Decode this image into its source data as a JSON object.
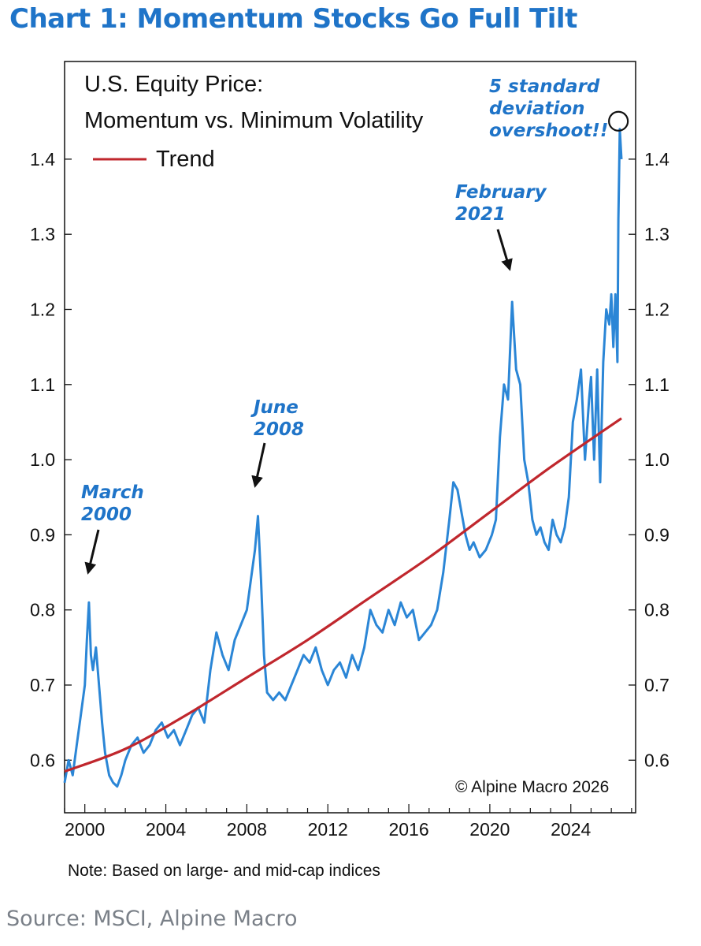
{
  "title": "Chart 1: Momentum Stocks Go Full Tilt",
  "note": "Note: Based on large- and mid-cap indices",
  "source": "Source: MSCI, Alpine Macro",
  "colors": {
    "title": "#1f74c8",
    "series": "#2b86d6",
    "trend": "#c0272d",
    "annotation": "#1f74c8"
  },
  "chart_data": {
    "type": "line",
    "legend_title": [
      "U.S. Equity Price:",
      "Momentum vs. Minimum Volatility"
    ],
    "legend_position": "top-left",
    "copyright": "© Alpine Macro 2026",
    "grid": false,
    "xlim": [
      1999.0,
      2027.2
    ],
    "ylim": [
      0.53,
      1.53
    ],
    "x_ticks": [
      2000,
      2004,
      2008,
      2012,
      2016,
      2020,
      2024
    ],
    "x_tick_labels": [
      "2000",
      "2004",
      "2008",
      "2012",
      "2016",
      "2020",
      "2024"
    ],
    "y_ticks": [
      0.6,
      0.7,
      0.8,
      0.9,
      1.0,
      1.1,
      1.2,
      1.3,
      1.4
    ],
    "y_tick_labels": [
      "0.6",
      "0.7",
      "0.8",
      "0.9",
      "1.0",
      "1.1",
      "1.2",
      "1.3",
      "1.4"
    ],
    "series": [
      {
        "kind": "price",
        "x": [
          1999.0,
          1999.2,
          1999.4,
          1999.6,
          1999.8,
          2000.0,
          2000.1,
          2000.2,
          2000.3,
          2000.4,
          2000.55,
          2000.7,
          2000.85,
          2001.0,
          2001.2,
          2001.4,
          2001.6,
          2001.8,
          2002.0,
          2002.3,
          2002.6,
          2002.9,
          2003.2,
          2003.5,
          2003.8,
          2004.1,
          2004.4,
          2004.7,
          2005.0,
          2005.3,
          2005.6,
          2005.9,
          2006.2,
          2006.5,
          2006.8,
          2007.1,
          2007.4,
          2007.7,
          2008.0,
          2008.2,
          2008.4,
          2008.55,
          2008.7,
          2008.85,
          2009.0,
          2009.3,
          2009.6,
          2009.9,
          2010.2,
          2010.5,
          2010.8,
          2011.1,
          2011.4,
          2011.7,
          2012.0,
          2012.3,
          2012.6,
          2012.9,
          2013.2,
          2013.5,
          2013.8,
          2014.1,
          2014.4,
          2014.7,
          2015.0,
          2015.3,
          2015.6,
          2015.9,
          2016.2,
          2016.5,
          2016.8,
          2017.1,
          2017.4,
          2017.7,
          2018.0,
          2018.2,
          2018.4,
          2018.6,
          2018.8,
          2019.0,
          2019.2,
          2019.5,
          2019.8,
          2020.1,
          2020.3,
          2020.5,
          2020.7,
          2020.9,
          2021.1,
          2021.3,
          2021.5,
          2021.7,
          2021.9,
          2022.1,
          2022.3,
          2022.5,
          2022.7,
          2022.9,
          2023.1,
          2023.3,
          2023.5,
          2023.7,
          2023.9,
          2024.1,
          2024.3,
          2024.5,
          2024.7,
          2024.9,
          2025.0,
          2025.15,
          2025.3,
          2025.45,
          2025.6,
          2025.75,
          2025.9,
          2026.0,
          2026.1,
          2026.2,
          2026.3,
          2026.35,
          2026.42,
          2026.5
        ],
        "y": [
          0.57,
          0.6,
          0.58,
          0.62,
          0.66,
          0.7,
          0.76,
          0.81,
          0.74,
          0.72,
          0.75,
          0.7,
          0.65,
          0.61,
          0.58,
          0.57,
          0.565,
          0.58,
          0.6,
          0.62,
          0.63,
          0.61,
          0.62,
          0.64,
          0.65,
          0.63,
          0.64,
          0.62,
          0.64,
          0.66,
          0.67,
          0.65,
          0.72,
          0.77,
          0.74,
          0.72,
          0.76,
          0.78,
          0.8,
          0.84,
          0.88,
          0.925,
          0.84,
          0.74,
          0.69,
          0.68,
          0.69,
          0.68,
          0.7,
          0.72,
          0.74,
          0.73,
          0.75,
          0.72,
          0.7,
          0.72,
          0.73,
          0.71,
          0.74,
          0.72,
          0.75,
          0.8,
          0.78,
          0.77,
          0.8,
          0.78,
          0.81,
          0.79,
          0.8,
          0.76,
          0.77,
          0.78,
          0.8,
          0.85,
          0.92,
          0.97,
          0.96,
          0.93,
          0.9,
          0.88,
          0.89,
          0.87,
          0.88,
          0.9,
          0.92,
          1.03,
          1.1,
          1.08,
          1.21,
          1.12,
          1.1,
          1.0,
          0.97,
          0.92,
          0.9,
          0.91,
          0.89,
          0.88,
          0.92,
          0.9,
          0.89,
          0.91,
          0.95,
          1.05,
          1.08,
          1.12,
          1.0,
          1.08,
          1.11,
          1.0,
          1.12,
          0.97,
          1.13,
          1.2,
          1.18,
          1.22,
          1.15,
          1.22,
          1.13,
          1.32,
          1.44,
          1.4
        ]
      },
      {
        "name": "Trend",
        "kind": "trend",
        "x": [
          1999.0,
          2002.0,
          2005.0,
          2008.0,
          2011.0,
          2014.0,
          2017.0,
          2020.0,
          2023.0,
          2026.5
        ],
        "y": [
          0.585,
          0.615,
          0.66,
          0.71,
          0.76,
          0.815,
          0.87,
          0.93,
          0.99,
          1.055
        ]
      }
    ],
    "annotations": [
      {
        "lines": [
          "March",
          "2000"
        ],
        "x": 2000.2,
        "y": 0.81
      },
      {
        "lines": [
          "June",
          "2008"
        ],
        "x": 2008.5,
        "y": 0.925
      },
      {
        "lines": [
          "February",
          "2021"
        ],
        "x": 2021.1,
        "y": 1.21
      },
      {
        "lines": [
          "5 standard",
          "deviation",
          "overshoot!!"
        ],
        "x": 2026.35,
        "y": 1.44
      }
    ]
  }
}
